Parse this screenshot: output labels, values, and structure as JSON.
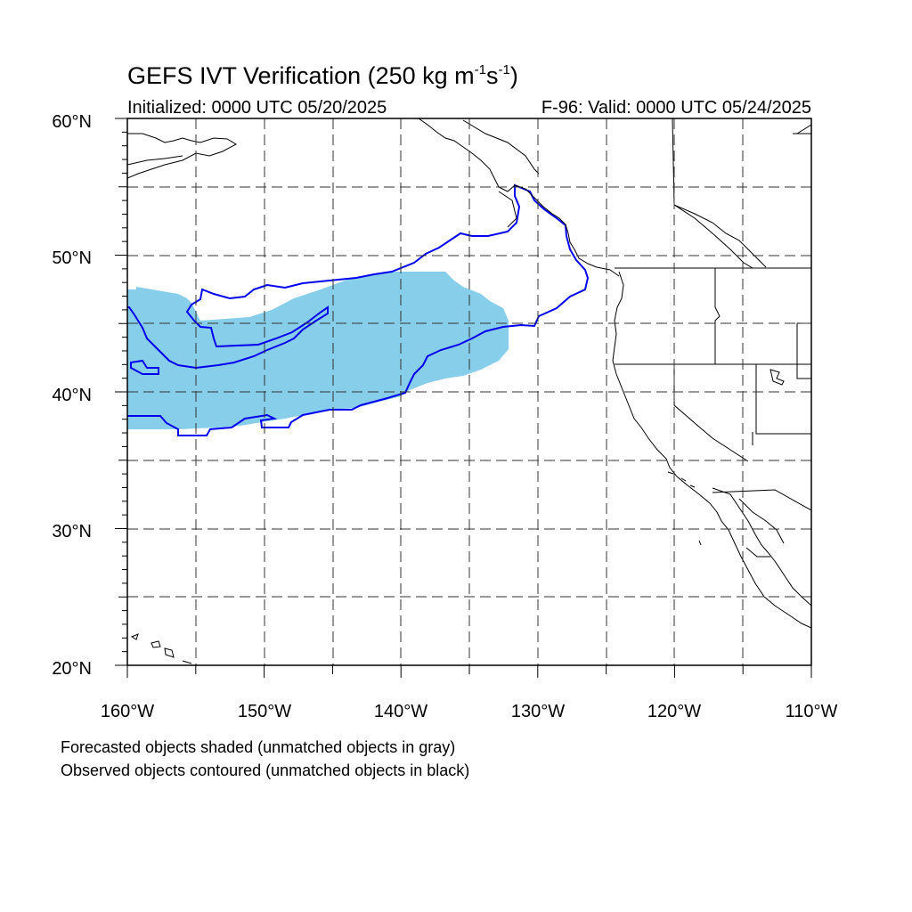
{
  "title": {
    "text": "GEFS IVT Verification (250 kg m",
    "sup1": "-1",
    "mid": "s",
    "sup2": "-1",
    "end": ")"
  },
  "initialized": "Initialized: 0000 UTC 05/20/2025",
  "valid": "F-96: Valid: 0000 UTC 05/24/2025",
  "map": {
    "lon_range": [
      -160,
      -110
    ],
    "lat_range": [
      20,
      60
    ],
    "lat_ticks": [
      "20°N",
      "30°N",
      "40°N",
      "50°N",
      "60°N"
    ],
    "lon_ticks": [
      "160°W",
      "150°W",
      "140°W",
      "130°W",
      "120°W",
      "110°W"
    ],
    "grid": "dashed, every 5°",
    "forecast_color": "#87CEEB",
    "observed_color": "#0000EE",
    "coast_color": "#000000"
  },
  "legend": {
    "line1": "Forecasted objects shaded (unmatched objects in gray)",
    "line2": "Observed objects contoured (unmatched objects in black)"
  }
}
